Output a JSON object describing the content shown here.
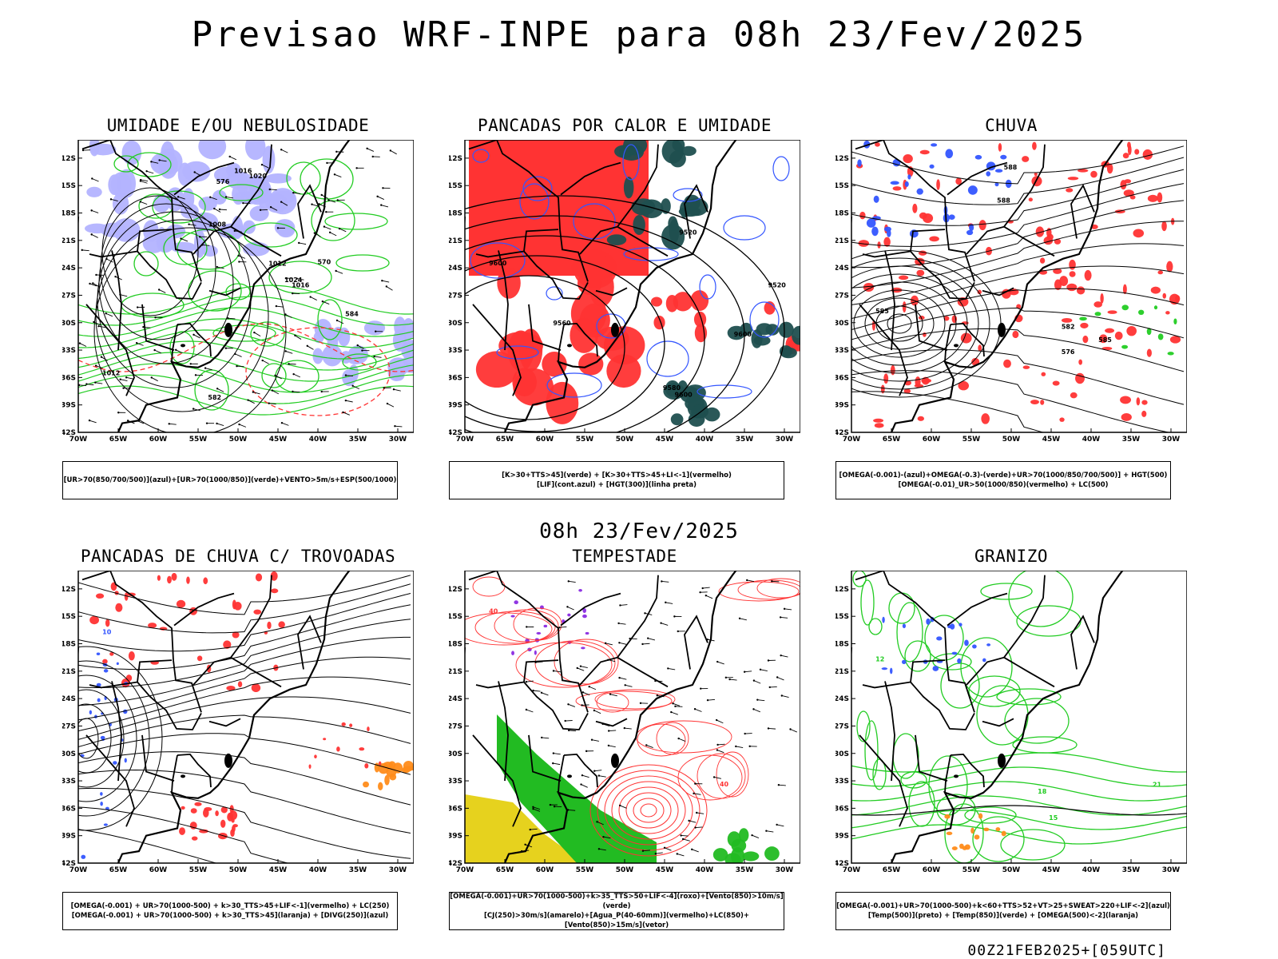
{
  "title": "Previsao WRF-INPE  para 08h 23/Fev/2025",
  "mid_title": "08h 23/Fev/2025",
  "footer": "00Z21FEB2025+[059UTC]",
  "lat_labels": [
    "12S",
    "15S",
    "18S",
    "21S",
    "24S",
    "27S",
    "30S",
    "33S",
    "36S",
    "39S",
    "42S"
  ],
  "lon_labels": [
    "70W",
    "65W",
    "60W",
    "55W",
    "50W",
    "45W",
    "40W",
    "35W",
    "30W"
  ],
  "colors": {
    "blue": "#3355ff",
    "lavender": "#b3b3ff",
    "green": "#22cc22",
    "red": "#ff3333",
    "darkteal": "#1f4f4f",
    "yellow": "#e6d21e",
    "orange": "#ff8c1a",
    "purple": "#8a2be2",
    "black": "#000000"
  },
  "panels": [
    {
      "title": "UMIDADE E/OU NEBULOSIDADE",
      "legend": [
        "[UR>70(850/700/500)](azul)+[UR>70(1000/850)](verde)+VENTO>5m/s+ESP(500/1000)"
      ],
      "labels": [
        "1012",
        "1012",
        "1016",
        "1016",
        "1020",
        "1008",
        "1024",
        "570",
        "576",
        "582",
        "584"
      ]
    },
    {
      "title": "PANCADAS POR CALOR E UMIDADE",
      "legend": [
        "[K>30+TTS>45](verde) + [K>30+TTS>45+LI<-1](vermelho)",
        "[LIF](cont.azul) + [HGT(300)](linha preta)"
      ],
      "labels": [
        "9600",
        "9600",
        "9600",
        "9560",
        "9520",
        "9520",
        "9580"
      ]
    },
    {
      "title": "CHUVA",
      "legend": [
        "[OMEGA(-0.001)-(azul)+OMEGA(-0.3)-(verde)+UR>70(1000/850/700/500)] + HGT(500)",
        "[OMEGA(-0.01)_UR>50(1000/850)(vermelho) + LC(500)"
      ],
      "labels": [
        "585",
        "588",
        "582",
        "576",
        "585",
        "588"
      ]
    },
    {
      "title": "PANCADAS DE CHUVA C/ TROVOADAS",
      "legend": [
        "[OMEGA(-0.001) + UR>70(1000-500) + k>30_TTS>45+LIF<-1](vermelho) + LC(250)",
        "[OMEGA(-0.001) + UR>70(1000-500) + k>30_TTS>45](laranja) + [DIVG(250)](azul)"
      ],
      "labels": [
        "10"
      ]
    },
    {
      "title": "TEMPESTADE",
      "legend": [
        "[OMEGA(-0.001)+UR>70(1000-500)+k>35_TTS>50+LIF<-4](roxo)+[Vento(850)>10m/s](verde)",
        "[CJ(250)>30m/s](amarelo)+[Agua_P(40-60mm)](vermelho)+LC(850)+[Vento(850)>15m/s](vetor)"
      ],
      "labels": [
        "40",
        "40"
      ]
    },
    {
      "title": "GRANIZO",
      "legend": [
        "[OMEGA(-0.001)+UR>70(1000-500)+k<60+TTS>52+VT>25+SWEAT>220+LIF<-2](azul)",
        "[Temp(500)](preto) + [Temp(850)](verde) + [OMEGA(500)<-2](laranja)"
      ],
      "labels": [
        "12",
        "15",
        "18",
        "21"
      ]
    }
  ]
}
